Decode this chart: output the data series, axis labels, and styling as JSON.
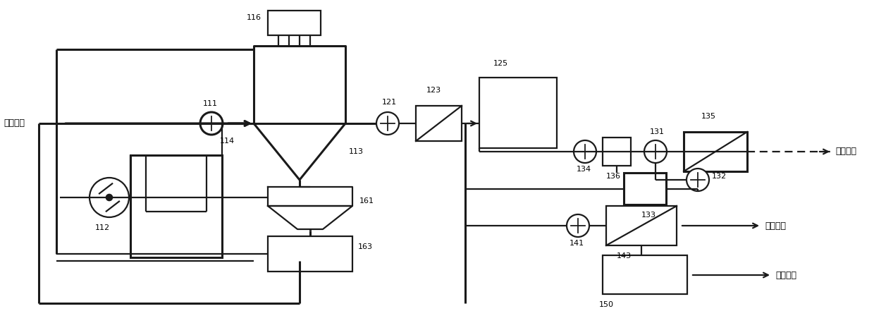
{
  "bg_color": "#ffffff",
  "lc": "#1a1a1a",
  "lw": 1.6,
  "lw_thick": 2.2,
  "fig_width": 12.4,
  "fig_height": 4.58,
  "dpi": 100,
  "labels": {
    "desulf": "脱硫废水",
    "level1": "一级产水",
    "level2": "二级产水",
    "level3": "三级产水",
    "n111": "111",
    "n112": "112",
    "n113": "113",
    "n114": "114",
    "n116": "116",
    "n121": "121",
    "n123": "123",
    "n125": "125",
    "n131": "131",
    "n132": "132",
    "n133": "133",
    "n134": "134",
    "n135": "135",
    "n136": "136",
    "n141": "141",
    "n143": "143",
    "n150": "150",
    "n161": "161",
    "n163": "163"
  },
  "note_fontsize": 8,
  "label_fontsize": 9
}
